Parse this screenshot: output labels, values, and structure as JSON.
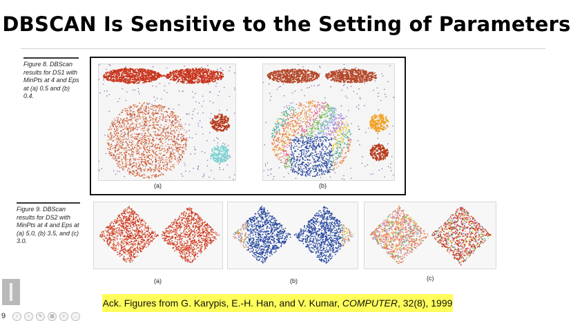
{
  "slide": {
    "title": "DBSCAN Is Sensitive to the Setting of Parameters",
    "number": "9"
  },
  "figure8": {
    "caption": "Figure 8. DBScan results for DS1 with MinPts at 4 and Eps at (a) 0.5 and (b) 0.4.",
    "labels": [
      "(a)",
      "(b)"
    ]
  },
  "figure9": {
    "caption": "Figure 9. DBScan results for DS2 with MinPts at 4 and Eps at (a) 5.0, (b) 3.5, and (c) 3.0.",
    "labels": [
      "(a)",
      "(b)",
      "(c)"
    ]
  },
  "ack": {
    "prefix": "Ack. Figures from G. Karypis, E.-H. Han, and V. Kumar, ",
    "journal": "COMPUTER",
    "suffix": ", 32(8), 1999"
  },
  "colors": {
    "red_cluster": "#c8341c",
    "brown_cluster": "#b5401f",
    "cyan_cluster": "#7fd3d3",
    "orange_cluster": "#f0a020",
    "blue_cluster": "#2a4aa0",
    "noise": "#8a6fb0",
    "highlight": "#fffe5a"
  },
  "controls": [
    "prev-icon",
    "next-icon",
    "pen-icon",
    "slides-icon",
    "zoom-icon",
    "more-icon"
  ]
}
